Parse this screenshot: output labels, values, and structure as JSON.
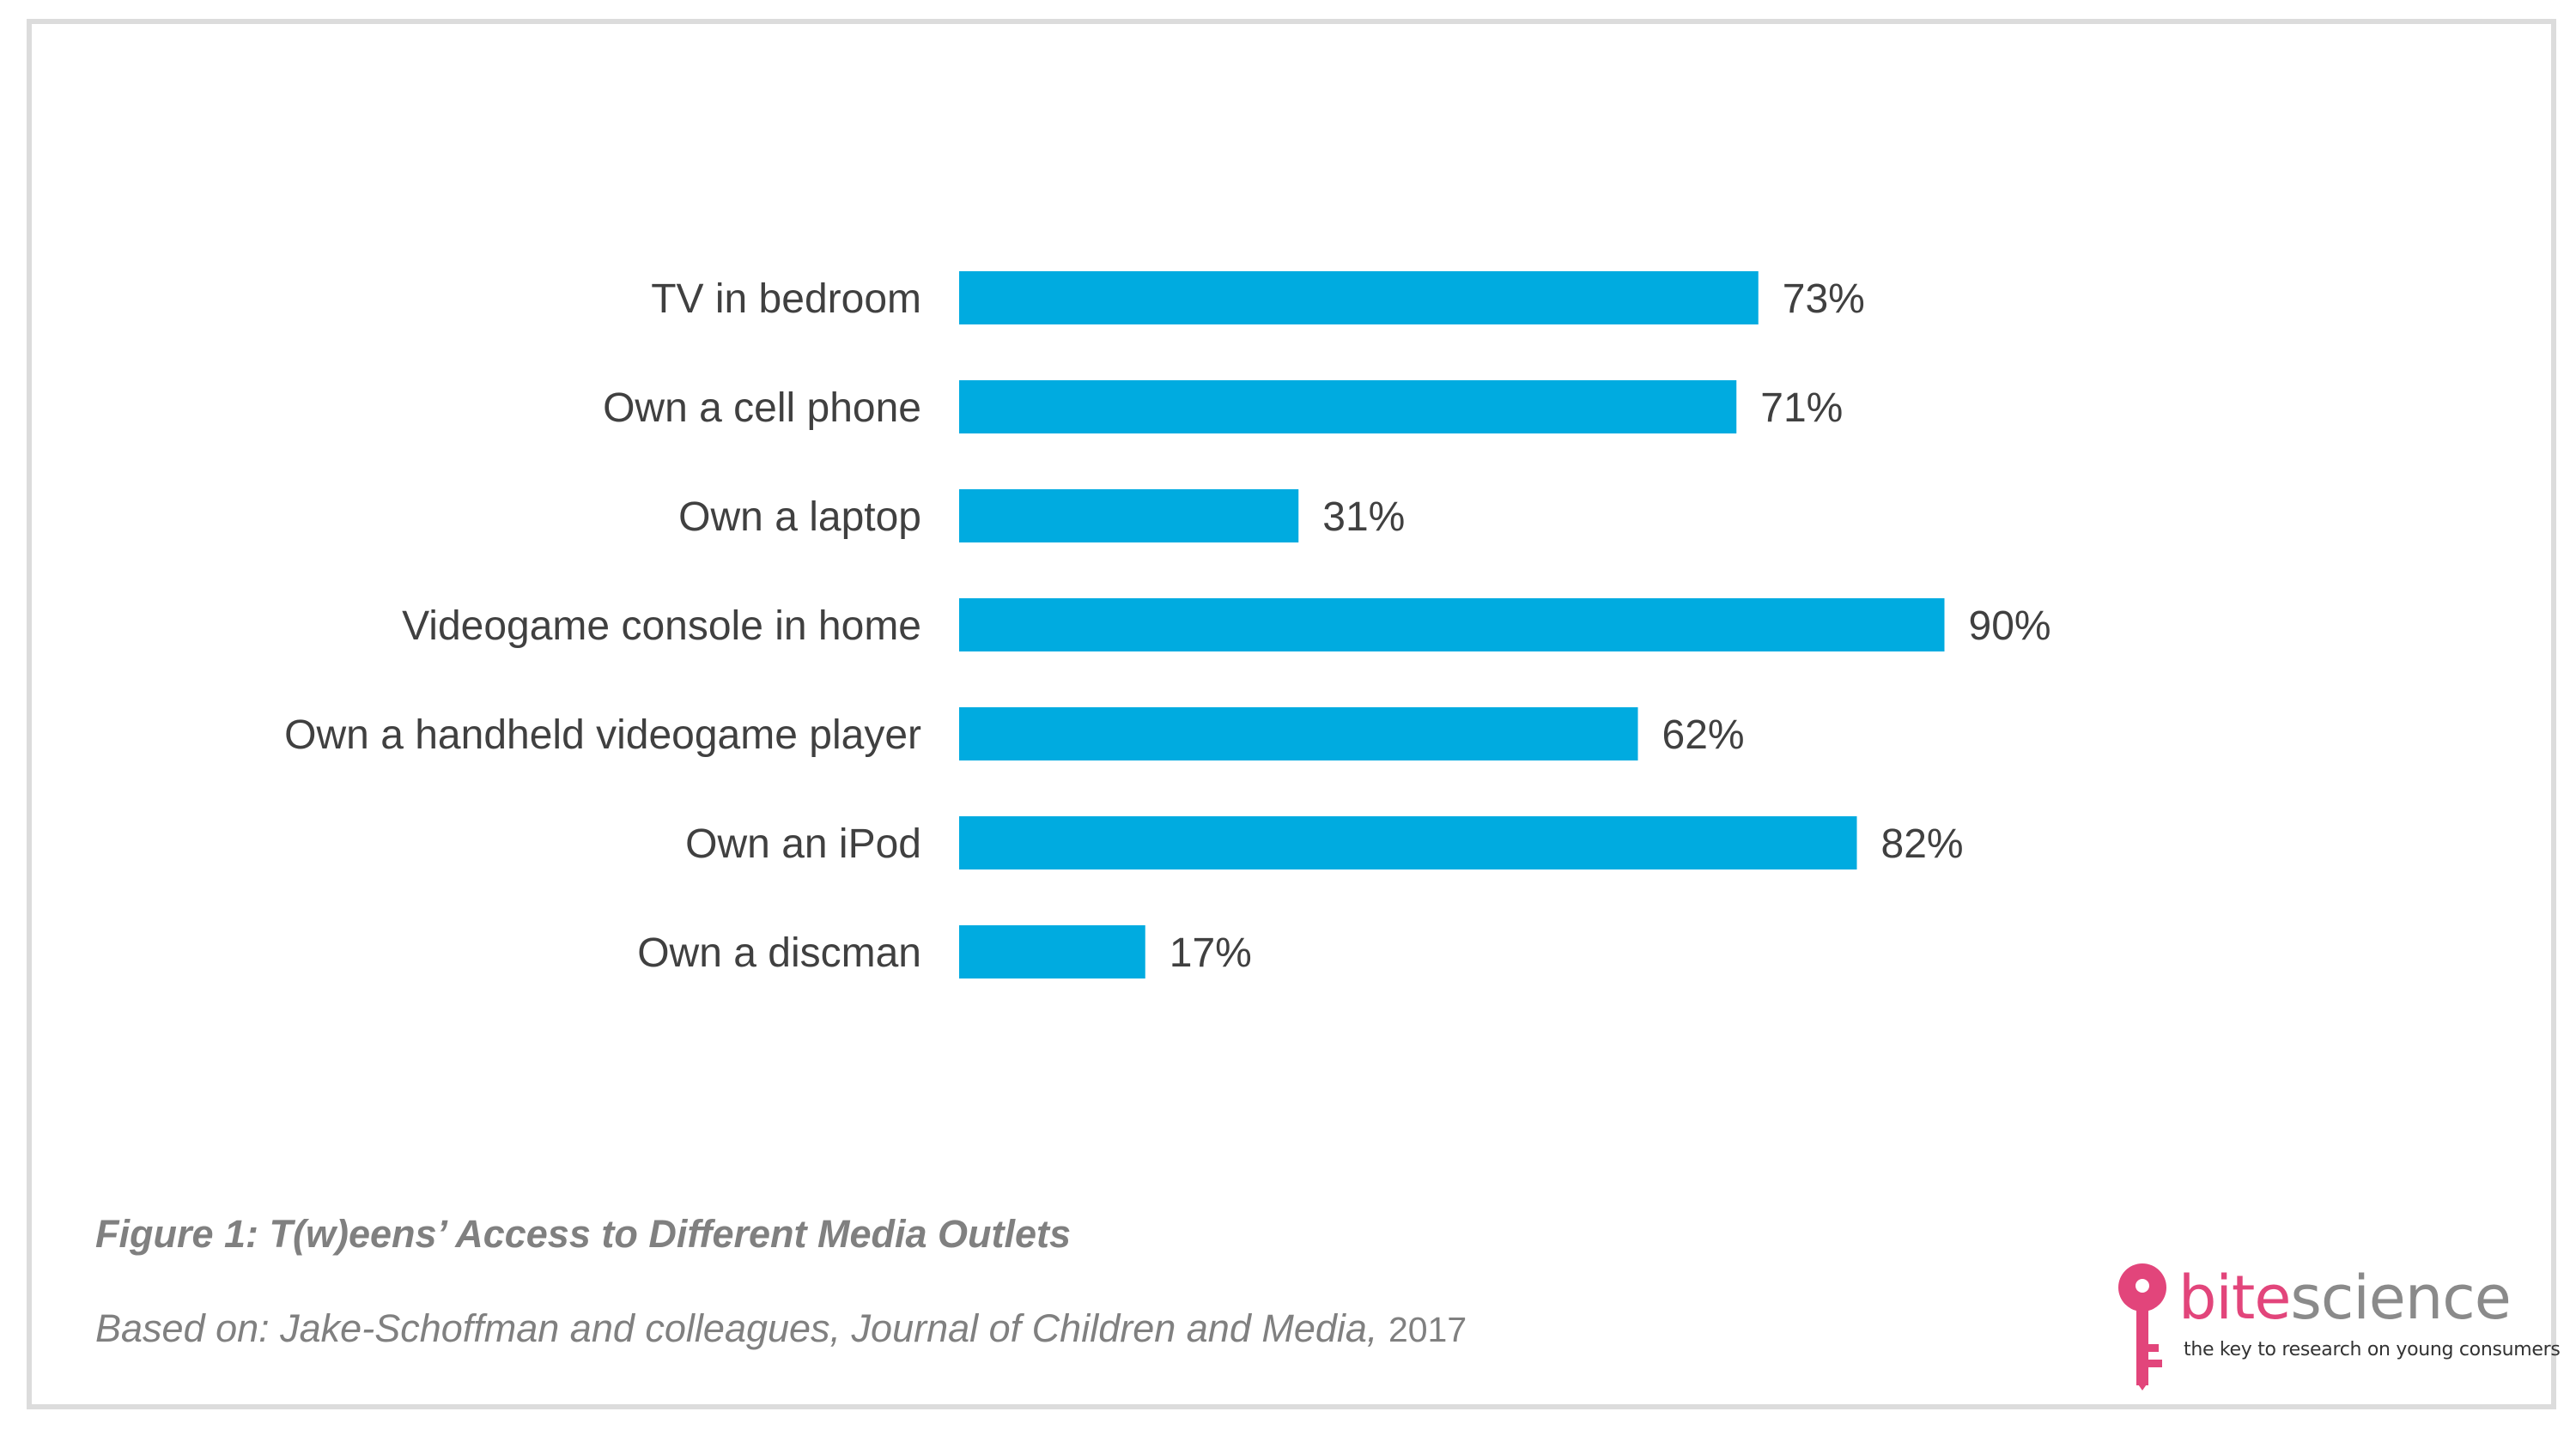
{
  "chart_data": {
    "type": "bar",
    "orientation": "horizontal",
    "categories": [
      "TV in bedroom",
      "Own a cell phone",
      "Own a laptop",
      "Videogame console in home",
      "Own a handheld videogame player",
      "Own an iPod",
      "Own a discman"
    ],
    "values": [
      73,
      71,
      31,
      90,
      62,
      82,
      17
    ],
    "data_labels": [
      "73%",
      "71%",
      "31%",
      "90%",
      "62%",
      "82%",
      "17%"
    ],
    "unit": "%",
    "xlim": [
      0,
      100
    ],
    "grid": false,
    "legend": "none",
    "bar_color": "#00abe0",
    "label_color": "#404040"
  },
  "caption": {
    "title": "Figure 1: T(w)eens’ Access to Different Media Outlets",
    "source_prefix": "Based on: Jake-Schoffman and colleagues, Journal of Children and Media,",
    "source_year": "2017"
  },
  "brand": {
    "name_part1": "bite",
    "name_part2": "science",
    "tagline": "the key to research on young consumers",
    "icon": "key-icon",
    "accent_color": "#e2457b"
  }
}
